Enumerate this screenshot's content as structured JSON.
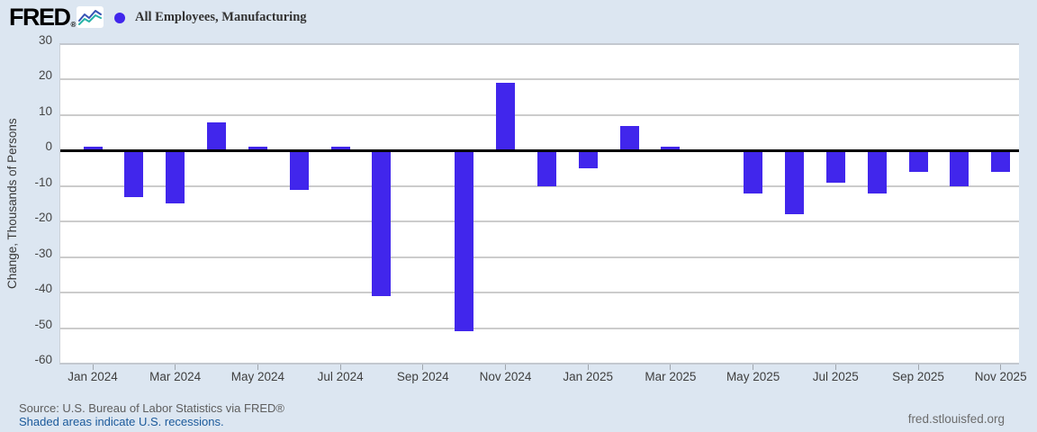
{
  "header": {
    "logo_text": "FRED",
    "logo_mark": "®",
    "legend_label": "All Employees, Manufacturing"
  },
  "chart_data": {
    "type": "bar",
    "title": "All Employees, Manufacturing",
    "ylabel": "Change, Thousands of Persons",
    "ylim": [
      -60,
      30
    ],
    "y_ticks": [
      30,
      20,
      10,
      0,
      -10,
      -20,
      -30,
      -40,
      -50,
      -60
    ],
    "categories": [
      "Jan 2024",
      "Feb 2024",
      "Mar 2024",
      "Apr 2024",
      "May 2024",
      "Jun 2024",
      "Jul 2024",
      "Aug 2024",
      "Sep 2024",
      "Oct 2024",
      "Nov 2024",
      "Dec 2024",
      "Jan 2025",
      "Feb 2025",
      "Mar 2025",
      "Apr 2025",
      "May 2025",
      "Jun 2025",
      "Jul 2025",
      "Aug 2025",
      "Sep 2025",
      "Oct 2025",
      "Nov 2025"
    ],
    "values": [
      1,
      -13,
      -15,
      8,
      1,
      -11,
      1,
      -41,
      0,
      -51,
      19,
      -10,
      -5,
      7,
      1,
      0,
      -12,
      -18,
      -9,
      -12,
      -6,
      -10,
      -6
    ],
    "x_tick_labels": [
      "Jan 2024",
      "Mar 2024",
      "May 2024",
      "Jul 2024",
      "Sep 2024",
      "Nov 2024",
      "Jan 2025",
      "Mar 2025",
      "May 2025",
      "Jul 2025",
      "Sep 2025",
      "Nov 2025"
    ],
    "bar_color": "#4126ec",
    "grid": true,
    "legend_position": "top-left"
  },
  "colors": {
    "background": "#dce6f1",
    "plot_background": "#ffffff",
    "gridline": "#cccccc",
    "zero_line": "#000000",
    "bar": "#4126ec",
    "link_blue": "#1b5a9b"
  },
  "footer": {
    "source_line": "Source: U.S. Bureau of Labor Statistics via FRED®",
    "recession_note": "Shaded areas indicate U.S. recessions.",
    "site_link": "fred.stlouisfed.org"
  }
}
